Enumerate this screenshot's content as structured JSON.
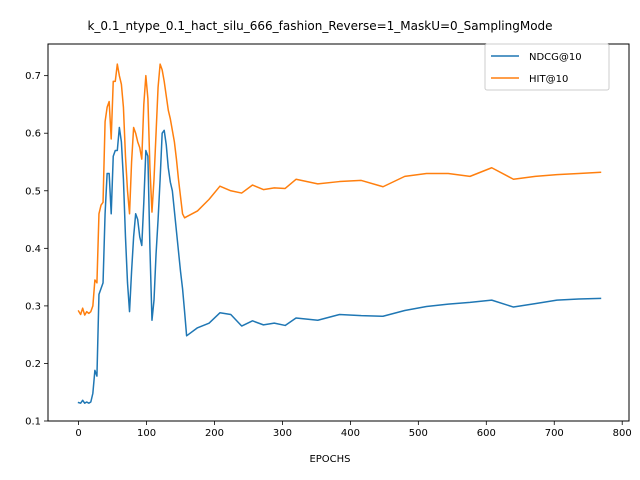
{
  "chart_data": {
    "type": "line",
    "title": "k_0.1_ntype_0.1_hact_silu_666_fashion_Reverse=1_MaskU=0_SamplingMode",
    "xlabel": "EPOCHS",
    "ylabel": "",
    "xlim": [
      -45,
      810
    ],
    "ylim": [
      0.1,
      0.755
    ],
    "xticks": [
      0,
      100,
      200,
      300,
      400,
      500,
      600,
      700,
      800
    ],
    "yticks": [
      0.1,
      0.2,
      0.3,
      0.4,
      0.5,
      0.6,
      0.7
    ],
    "xtick_labels": [
      "0",
      "100",
      "200",
      "300",
      "400",
      "500",
      "600",
      "700",
      "800"
    ],
    "ytick_labels": [
      "0.1",
      "0.2",
      "0.3",
      "0.4",
      "0.5",
      "0.6",
      "0.7"
    ],
    "grid": false,
    "legend_position": "top-right",
    "series": [
      {
        "name": "NDCG@10",
        "color": "#1f77b4",
        "x": [
          0,
          3,
          6,
          9,
          12,
          15,
          18,
          21,
          24,
          27,
          30,
          33,
          36,
          39,
          42,
          45,
          48,
          51,
          54,
          57,
          60,
          63,
          66,
          69,
          72,
          75,
          78,
          81,
          84,
          87,
          90,
          93,
          96,
          99,
          102,
          105,
          108,
          111,
          114,
          117,
          120,
          123,
          126,
          129,
          132,
          135,
          138,
          141,
          144,
          147,
          150,
          153,
          156,
          159,
          175,
          192,
          208,
          224,
          240,
          256,
          272,
          288,
          304,
          320,
          352,
          384,
          416,
          448,
          480,
          512,
          544,
          576,
          608,
          640,
          672,
          704,
          736,
          768
        ],
        "values": [
          0.132,
          0.131,
          0.136,
          0.131,
          0.133,
          0.131,
          0.133,
          0.148,
          0.188,
          0.178,
          0.32,
          0.33,
          0.34,
          0.46,
          0.53,
          0.53,
          0.46,
          0.56,
          0.57,
          0.57,
          0.61,
          0.585,
          0.52,
          0.42,
          0.34,
          0.29,
          0.36,
          0.42,
          0.46,
          0.45,
          0.42,
          0.405,
          0.48,
          0.57,
          0.56,
          0.4,
          0.275,
          0.31,
          0.39,
          0.45,
          0.52,
          0.6,
          0.605,
          0.58,
          0.54,
          0.515,
          0.5,
          0.465,
          0.43,
          0.395,
          0.36,
          0.33,
          0.29,
          0.248,
          0.262,
          0.27,
          0.288,
          0.285,
          0.265,
          0.274,
          0.267,
          0.27,
          0.266,
          0.279,
          0.275,
          0.285,
          0.283,
          0.282,
          0.292,
          0.299,
          0.303,
          0.306,
          0.31,
          0.298,
          0.304,
          0.31,
          0.312,
          0.313
        ]
      },
      {
        "name": "HIT@10",
        "color": "#ff7f0e",
        "x": [
          0,
          3,
          6,
          9,
          12,
          15,
          18,
          21,
          24,
          27,
          30,
          33,
          36,
          39,
          42,
          45,
          48,
          51,
          54,
          57,
          60,
          63,
          66,
          69,
          72,
          75,
          78,
          81,
          84,
          87,
          90,
          93,
          96,
          99,
          102,
          105,
          108,
          111,
          114,
          117,
          120,
          123,
          126,
          129,
          132,
          135,
          138,
          141,
          144,
          147,
          150,
          153,
          156,
          159,
          175,
          192,
          208,
          224,
          240,
          256,
          272,
          288,
          304,
          320,
          352,
          384,
          416,
          448,
          480,
          512,
          544,
          576,
          608,
          640,
          672,
          704,
          736,
          768
        ],
        "values": [
          0.291,
          0.285,
          0.296,
          0.284,
          0.29,
          0.287,
          0.29,
          0.3,
          0.345,
          0.34,
          0.46,
          0.475,
          0.48,
          0.62,
          0.645,
          0.655,
          0.59,
          0.69,
          0.69,
          0.72,
          0.7,
          0.685,
          0.645,
          0.56,
          0.5,
          0.46,
          0.55,
          0.61,
          0.6,
          0.585,
          0.575,
          0.555,
          0.65,
          0.7,
          0.66,
          0.54,
          0.463,
          0.52,
          0.6,
          0.68,
          0.72,
          0.71,
          0.69,
          0.665,
          0.64,
          0.625,
          0.605,
          0.585,
          0.555,
          0.52,
          0.49,
          0.46,
          0.453,
          0.455,
          0.465,
          0.485,
          0.508,
          0.5,
          0.496,
          0.51,
          0.502,
          0.505,
          0.504,
          0.52,
          0.512,
          0.516,
          0.518,
          0.507,
          0.525,
          0.53,
          0.53,
          0.525,
          0.54,
          0.52,
          0.525,
          0.528,
          0.53,
          0.532
        ]
      }
    ]
  }
}
